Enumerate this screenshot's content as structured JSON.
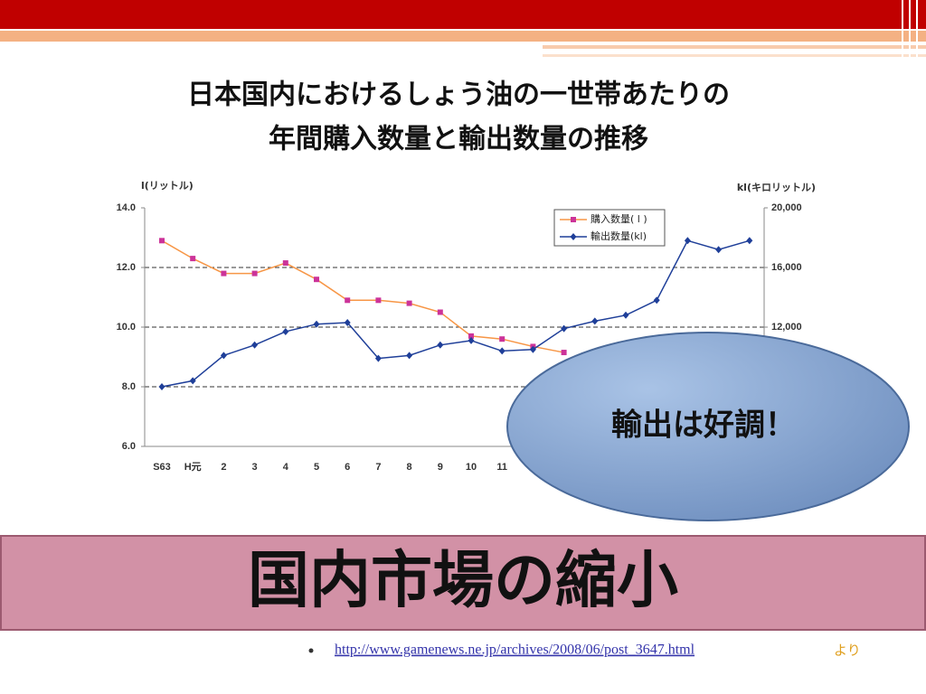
{
  "title": [
    "日本国内におけるしょう油の一世帯あたりの",
    "年間購入数量と輸出数量の推移"
  ],
  "chart_data": {
    "type": "line",
    "y_label": "l(リットル)",
    "y2_label": "kl(キロリットル)",
    "categories": [
      "S63",
      "H元",
      "2",
      "3",
      "4",
      "5",
      "6",
      "7",
      "8",
      "9",
      "10",
      "11",
      null,
      null,
      null,
      null,
      null,
      null,
      null,
      null
    ],
    "series": [
      {
        "name": "購入数量( l )",
        "color": "#f79646",
        "marker_color": "#cc3399",
        "marker": "square",
        "values": [
          12.9,
          12.3,
          11.8,
          11.8,
          12.15,
          11.6,
          10.9,
          10.9,
          10.8,
          10.5,
          9.7,
          9.6,
          9.35,
          9.15,
          null,
          null,
          null,
          null,
          null,
          null
        ]
      },
      {
        "name": "輸出数量(kl)",
        "color": "#1f3f99",
        "marker_color": "#1f3f99",
        "marker": "diamond",
        "axis": "y2",
        "values": [
          8000,
          8400,
          10100,
          10800,
          11700,
          12200,
          12300,
          9900,
          10100,
          10800,
          11100,
          10400,
          10500,
          11900,
          12400,
          12800,
          13800,
          17800,
          17200,
          17800
        ]
      }
    ],
    "ylim": [
      6,
      14
    ],
    "yticks": [
      {
        "value": 6,
        "label": "6.0"
      },
      {
        "value": 8,
        "label": "8.0"
      },
      {
        "value": 10,
        "label": "10.0"
      },
      {
        "value": 12,
        "label": "12.0"
      },
      {
        "value": 14,
        "label": "14.0"
      }
    ],
    "y2lim": [
      4000,
      20000
    ],
    "y2ticks": [
      {
        "value": 12000,
        "label": "12,000"
      },
      {
        "value": 16000,
        "label": "16,000"
      },
      {
        "value": 20000,
        "label": "20,000"
      }
    ],
    "grid": true,
    "grid_style": "dashed",
    "legend": "top-right"
  },
  "callout": "輸出は好調！",
  "banner": "国内市場の縮小",
  "source": {
    "url": "http://www.gamenews.ne.jp/archives/2008/06/post_3647.html",
    "suffix": "より"
  }
}
